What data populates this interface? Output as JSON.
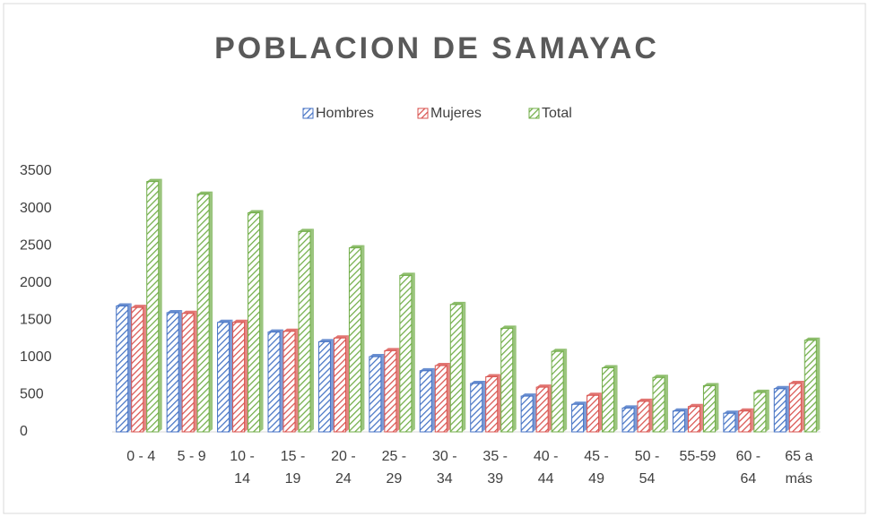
{
  "chart_data": {
    "type": "bar",
    "title": "POBLACION DE SAMAYAC",
    "categories": [
      "0 - 4",
      "5 - 9",
      "10 - 14",
      "15 - 19",
      "20 - 24",
      "25 - 29",
      "30 - 34",
      "35 - 39",
      "40 - 44",
      "45 - 49",
      "50 - 54",
      "55-59",
      "60 - 64",
      "65 a más"
    ],
    "series": [
      {
        "name": "Hombres",
        "color": "#4472c4",
        "values": [
          1690,
          1600,
          1470,
          1340,
          1210,
          1010,
          820,
          650,
          480,
          370,
          320,
          280,
          250,
          580
        ]
      },
      {
        "name": "Mujeres",
        "color": "#d9534f",
        "values": [
          1670,
          1590,
          1470,
          1350,
          1260,
          1090,
          890,
          740,
          600,
          490,
          410,
          340,
          280,
          650
        ]
      },
      {
        "name": "Total",
        "color": "#70ad47",
        "values": [
          3360,
          3190,
          2940,
          2690,
          2470,
          2100,
          1710,
          1390,
          1080,
          860,
          730,
          620,
          530,
          1230
        ]
      }
    ],
    "ylim": [
      0,
      3500
    ],
    "yticks": [
      0,
      500,
      1000,
      1500,
      2000,
      2500,
      3000,
      3500
    ],
    "legend": "top"
  }
}
